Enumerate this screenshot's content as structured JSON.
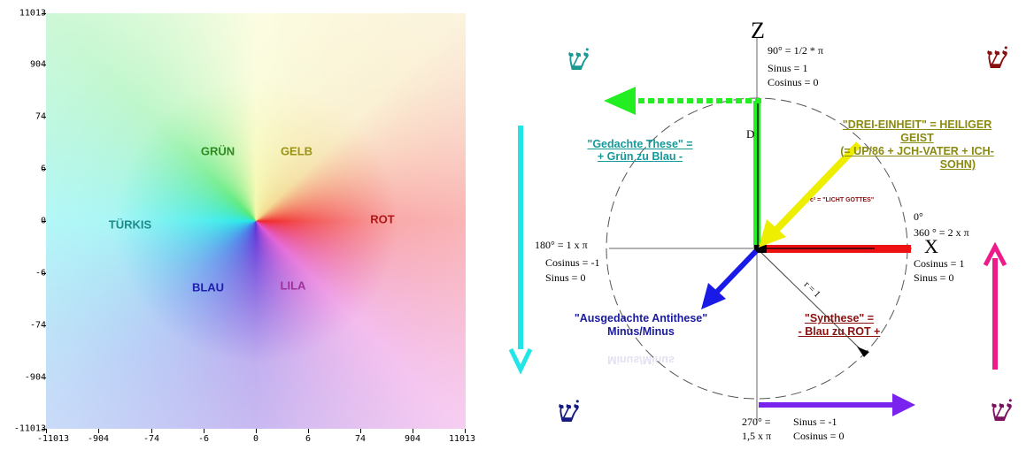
{
  "wheel": {
    "y_ticks": [
      "11013",
      "904",
      "74",
      "6",
      "0",
      "-6",
      "-74",
      "-904",
      "-11013"
    ],
    "x_ticks": [
      "-11013",
      "-904",
      "-74",
      "-6",
      "0",
      "6",
      "74",
      "904",
      "11013"
    ],
    "labels": {
      "gruen": "GRÜN",
      "gelb": "GELB",
      "tuerkis": "TÜRKIS",
      "rot": "ROT",
      "blau": "BLAU",
      "lila": "LILA"
    },
    "colors": {
      "gruen": "#2e8b22",
      "gelb": "#9a9414",
      "tuerkis": "#1e8a8a",
      "rot": "#b01818",
      "blau": "#1e1eaa",
      "lila": "#a0309a"
    }
  },
  "diagram": {
    "axis_z": "Z",
    "axis_x": "X",
    "top_angle": "90° = 1/2 * π",
    "top_sin": "Sinus = 1",
    "top_cos": "Cosinus = 0",
    "label_d": "D",
    "right_angle_0": "0°",
    "right_angle_360": "360 ° = 2 x π",
    "right_cos": "Cosinus = 1",
    "right_sin": "Sinus = 0",
    "left_angle": "180° = 1 x π",
    "left_cos": "Cosinus = -1",
    "left_sin": "Sinus = 0",
    "bottom_angle_a": "270° =",
    "bottom_angle_b": "1,5 x π",
    "bottom_sin": "Sinus = -1",
    "bottom_cos": "Cosinus = 0",
    "radius": "r = 1",
    "light": "c² = \"LICHT GOTTES\"",
    "these_title": "\"Gedachte These\" =",
    "these_sub": "+ Grün zu Blau -",
    "einheit_1": "\"DREI-EINHEIT\" = HEILIGER",
    "einheit_2": "GEIST",
    "einheit_3": "(= UP/86 + JCH-VATER + ICH-",
    "einheit_4": "SOHN)",
    "antithese_1": "\"Ausgedachte Antithese\"",
    "antithese_2": "Minus/Minus",
    "antithese_mirror": "Minus/Minus",
    "synthese_1": "\"Synthese\" =",
    "synthese_2": "- Blau zu ROT +",
    "shin": "שׁ",
    "colors": {
      "these": "#159a9a",
      "einheit": "#8a8a10",
      "antithese": "#1a1aa0",
      "synthese": "#8a1010",
      "light": "#8a1010"
    }
  }
}
